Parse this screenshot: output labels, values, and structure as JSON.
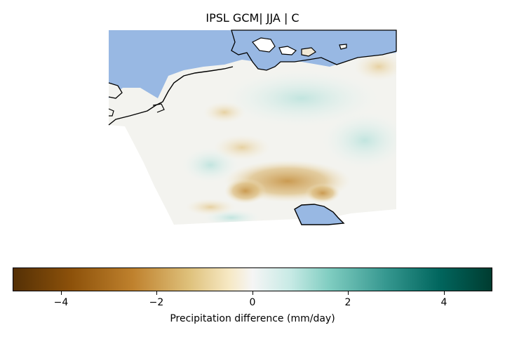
{
  "title": "IPSL GCM| JJA | C",
  "colorbar": {
    "label": "Precipitation difference (mm/day)",
    "min": -5,
    "max": 5,
    "ticks": [
      "−4",
      "−2",
      "0",
      "2",
      "4"
    ],
    "tick_values": [
      -4,
      -2,
      0,
      2,
      4
    ],
    "colormap": "BrBG"
  },
  "colors": {
    "sea": "#98b8e3",
    "coast": "#000000"
  }
}
